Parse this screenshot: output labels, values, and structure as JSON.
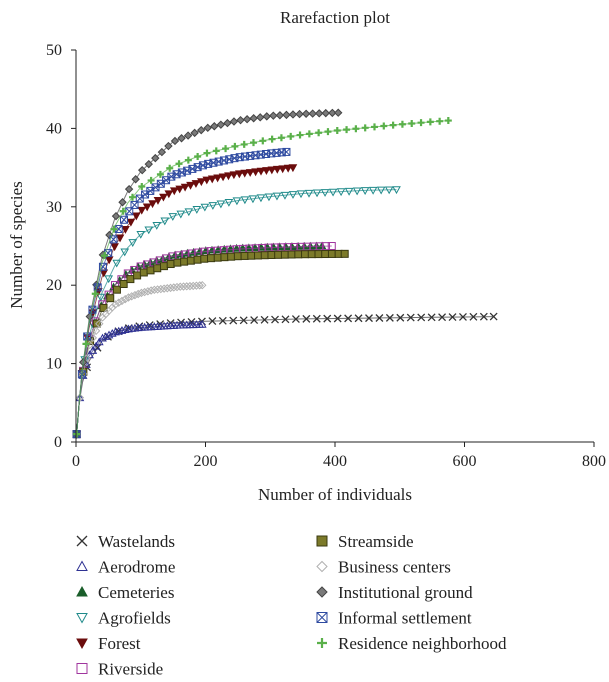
{
  "chart_data": {
    "type": "scatter",
    "title": "Rarefaction plot",
    "xlabel": "Number of individuals",
    "ylabel": "Number of species",
    "xlim": [
      0,
      800
    ],
    "ylim": [
      0,
      50
    ],
    "xticks": [
      0,
      200,
      400,
      600,
      800
    ],
    "yticks": [
      0,
      10,
      20,
      30,
      40,
      50
    ],
    "grid": false,
    "legend_position": "bottom",
    "series": [
      {
        "name": "Wastelands",
        "marker": "x",
        "color": "#333333",
        "fill": "none",
        "n_max": 645,
        "s_max": 16,
        "x": [
          1,
          5,
          10,
          20,
          40,
          60,
          80,
          100,
          150,
          200,
          250,
          300,
          350,
          400,
          450,
          500,
          550,
          600,
          645
        ],
        "y": [
          1,
          5,
          7.6,
          10.3,
          12.9,
          14.0,
          14.5,
          14.8,
          15.2,
          15.4,
          15.5,
          15.6,
          15.7,
          15.75,
          15.8,
          15.85,
          15.9,
          15.95,
          16.0
        ]
      },
      {
        "name": "Aerodrome",
        "marker": "triangle-up",
        "color": "#2e3192",
        "fill": "none",
        "n_max": 195,
        "s_max": 15,
        "x": [
          1,
          5,
          10,
          20,
          40,
          60,
          80,
          100,
          120,
          140,
          160,
          180,
          195
        ],
        "y": [
          1,
          5,
          8.2,
          11,
          13.2,
          14.0,
          14.4,
          14.6,
          14.7,
          14.8,
          14.9,
          14.95,
          15.0
        ]
      },
      {
        "name": "Cemeteries",
        "marker": "triangle-up",
        "color": "#1a5e2a",
        "fill": "#1a5e2a",
        "n_max": 380,
        "s_max": 25,
        "x": [
          1,
          5,
          10,
          20,
          40,
          60,
          80,
          100,
          150,
          200,
          250,
          300,
          350,
          380
        ],
        "y": [
          1,
          5,
          8.8,
          13,
          17.6,
          20,
          21.6,
          22.5,
          23.8,
          24.4,
          24.7,
          24.85,
          24.95,
          25.0
        ]
      },
      {
        "name": "Agrofields",
        "marker": "triangle-down",
        "color": "#1f8a8a",
        "fill": "none",
        "n_max": 495,
        "s_max": 32.2,
        "x": [
          1,
          5,
          10,
          20,
          40,
          60,
          80,
          100,
          150,
          200,
          250,
          300,
          350,
          400,
          450,
          495
        ],
        "y": [
          1,
          5,
          9,
          13.5,
          19,
          22.5,
          24.8,
          26.5,
          28.8,
          30.0,
          30.8,
          31.3,
          31.7,
          31.9,
          32.1,
          32.2
        ]
      },
      {
        "name": "Forest",
        "marker": "triangle-down",
        "color": "#6b0d0d",
        "fill": "#6b0d0d",
        "n_max": 335,
        "s_max": 35,
        "x": [
          1,
          5,
          10,
          20,
          40,
          60,
          80,
          100,
          150,
          200,
          250,
          300,
          335
        ],
        "y": [
          1,
          5,
          9.3,
          14.5,
          21,
          25,
          27.6,
          29.5,
          32,
          33.4,
          34.2,
          34.7,
          35.0
        ]
      },
      {
        "name": "Riverside",
        "marker": "square",
        "color": "#a0359e",
        "fill": "none",
        "n_max": 395,
        "s_max": 25,
        "x": [
          1,
          5,
          10,
          20,
          40,
          60,
          80,
          100,
          150,
          200,
          250,
          300,
          350,
          395
        ],
        "y": [
          1,
          5,
          8.7,
          13,
          17.5,
          20,
          21.5,
          22.4,
          23.7,
          24.3,
          24.6,
          24.8,
          24.9,
          25.0
        ]
      },
      {
        "name": "Streamside",
        "marker": "square",
        "color": "#3a3a10",
        "fill": "#7c7a2a",
        "n_max": 415,
        "s_max": 24,
        "x": [
          1,
          5,
          10,
          20,
          40,
          60,
          80,
          100,
          150,
          200,
          250,
          300,
          350,
          415
        ],
        "y": [
          1,
          5,
          8.4,
          12.5,
          16.8,
          19.2,
          20.6,
          21.5,
          22.8,
          23.4,
          23.7,
          23.85,
          23.95,
          24.0
        ]
      },
      {
        "name": "Business centers",
        "marker": "diamond",
        "color": "#b0b0b0",
        "fill": "none",
        "n_max": 195,
        "s_max": 20,
        "x": [
          1,
          5,
          10,
          20,
          40,
          60,
          80,
          100,
          120,
          140,
          160,
          180,
          195
        ],
        "y": [
          1,
          5,
          8.3,
          12.2,
          15.8,
          17.5,
          18.4,
          19.0,
          19.4,
          19.6,
          19.8,
          19.9,
          20.0
        ]
      },
      {
        "name": "Institutional ground",
        "marker": "diamond",
        "color": "#444444",
        "fill": "#7a7a7a",
        "n_max": 405,
        "s_max": 42,
        "x": [
          1,
          5,
          10,
          20,
          40,
          60,
          80,
          100,
          150,
          200,
          250,
          300,
          350,
          405
        ],
        "y": [
          1,
          5,
          9.5,
          15.5,
          23.5,
          28.5,
          32,
          34.5,
          38.3,
          40.0,
          41.0,
          41.6,
          41.85,
          42.0
        ]
      },
      {
        "name": "Informal settlement",
        "marker": "square-x",
        "color": "#2e4aa0",
        "fill": "none",
        "n_max": 325,
        "s_max": 37,
        "x": [
          1,
          5,
          10,
          20,
          40,
          60,
          80,
          100,
          150,
          200,
          250,
          300,
          325
        ],
        "y": [
          1,
          5,
          9.4,
          15,
          22,
          26.3,
          29.2,
          31.2,
          34,
          35.4,
          36.3,
          36.8,
          37.0
        ]
      },
      {
        "name": "Residence neighborhood",
        "marker": "plus",
        "color": "#5ab04a",
        "fill": "#5ab04a",
        "n_max": 575,
        "s_max": 41,
        "x": [
          1,
          5,
          10,
          20,
          40,
          60,
          80,
          100,
          150,
          200,
          250,
          300,
          350,
          400,
          450,
          500,
          550,
          575
        ],
        "y": [
          1,
          5,
          9.4,
          15.2,
          22.8,
          27.5,
          30.5,
          32.5,
          35.2,
          36.8,
          37.8,
          38.6,
          39.2,
          39.7,
          40.1,
          40.5,
          40.85,
          41.0
        ]
      }
    ]
  }
}
